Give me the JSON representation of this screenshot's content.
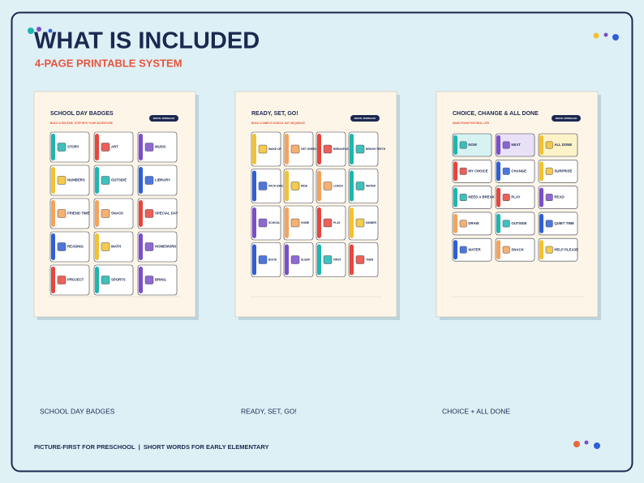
{
  "header": {
    "title": "WHAT IS INCLUDED",
    "subtitle": "4-PAGE PRINTABLE SYSTEM"
  },
  "pages": [
    {
      "title": "SCHOOL DAY BADGES",
      "subtitle": "BUILD A ROUTINE, STEP INTO YOUR ADVENTURE",
      "badge": "DIGITAL DOWNLOAD",
      "caption": "SCHOOL DAY BADGES",
      "cards": [
        {
          "label": "STORY",
          "color": "#1fb5b0"
        },
        {
          "label": "ART",
          "color": "#e8453c"
        },
        {
          "label": "MUSIC",
          "color": "#7a4fc9"
        },
        {
          "label": "NUMBERS",
          "color": "#f2c230"
        },
        {
          "label": "OUTSIDE",
          "color": "#1fb5b0"
        },
        {
          "label": "LIBRARY",
          "color": "#2f5fd6"
        },
        {
          "label": "FRIEND TIME",
          "color": "#f5a35a"
        },
        {
          "label": "SNACK",
          "color": "#f5a35a"
        },
        {
          "label": "SPECIAL DAY",
          "color": "#e8453c"
        },
        {
          "label": "READING",
          "color": "#2f5fd6"
        },
        {
          "label": "MATH",
          "color": "#f2c230"
        },
        {
          "label": "HOMEWORK",
          "color": "#7a4fc9"
        },
        {
          "label": "PROJECT",
          "color": "#e8453c"
        },
        {
          "label": "SPORTS",
          "color": "#1fb5b0"
        },
        {
          "label": "BRING",
          "color": "#7a4fc9"
        }
      ]
    },
    {
      "title": "READY, SET, GO!",
      "subtitle": "BUILD A SIMPLE SCHOOL DAY SEQUENCE",
      "badge": "DIGITAL DOWNLOAD",
      "caption": "READY, SET, GO!",
      "cards": [
        {
          "label": "WAKE UP",
          "color": "#f2c230"
        },
        {
          "label": "GET DRESSED",
          "color": "#f5a35a"
        },
        {
          "label": "BREAKFAST",
          "color": "#e8453c"
        },
        {
          "label": "BRUSH TEETH",
          "color": "#1fb5b0"
        },
        {
          "label": "PACK BAG",
          "color": "#2f5fd6"
        },
        {
          "label": "RIDE",
          "color": "#f2c230"
        },
        {
          "label": "LUNCH",
          "color": "#f5a35a"
        },
        {
          "label": "WATER",
          "color": "#1fb5b0"
        },
        {
          "label": "SCHOOL",
          "color": "#7a4fc9"
        },
        {
          "label": "HOME",
          "color": "#f5a35a"
        },
        {
          "label": "PLAY",
          "color": "#e8453c"
        },
        {
          "label": "DINNER",
          "color": "#f2c230"
        },
        {
          "label": "BOOK",
          "color": "#2f5fd6"
        },
        {
          "label": "SLEEP",
          "color": "#7a4fc9"
        },
        {
          "label": "FIRST",
          "color": "#1fb5b0"
        },
        {
          "label": "THEN",
          "color": "#e8453c"
        }
      ]
    },
    {
      "title": "CHOICE, CHANGE & ALL DONE",
      "subtitle": "MAKE ROOM FOR REAL LIFE",
      "badge": "DIGITAL DOWNLOAD",
      "caption": "CHOICE + ALL DONE",
      "cards": [
        {
          "label": "NOW",
          "color": "#1fb5b0"
        },
        {
          "label": "NEXT",
          "color": "#7a4fc9"
        },
        {
          "label": "ALL DONE",
          "color": "#f2c230"
        },
        {
          "label": "MY CHOICE",
          "color": "#e8453c"
        },
        {
          "label": "CHANGE",
          "color": "#2f5fd6"
        },
        {
          "label": "SURPRISE",
          "color": "#f2c230"
        },
        {
          "label": "NEED A BREAK",
          "color": "#1fb5b0"
        },
        {
          "label": "PLAY",
          "color": "#e8453c"
        },
        {
          "label": "READ",
          "color": "#7a4fc9"
        },
        {
          "label": "DRAW",
          "color": "#f5a35a"
        },
        {
          "label": "OUTSIDE",
          "color": "#1fb5b0"
        },
        {
          "label": "QUIET TIME",
          "color": "#2f5fd6"
        },
        {
          "label": "WATER",
          "color": "#2f5fd6"
        },
        {
          "label": "SNACK",
          "color": "#f5a35a"
        },
        {
          "label": "HELP PLEASE",
          "color": "#f2c230"
        }
      ]
    }
  ],
  "footer": "PICTURE-FIRST FOR PRESCHOOL  |  SHORT WORDS FOR EARLY ELEMENTARY"
}
